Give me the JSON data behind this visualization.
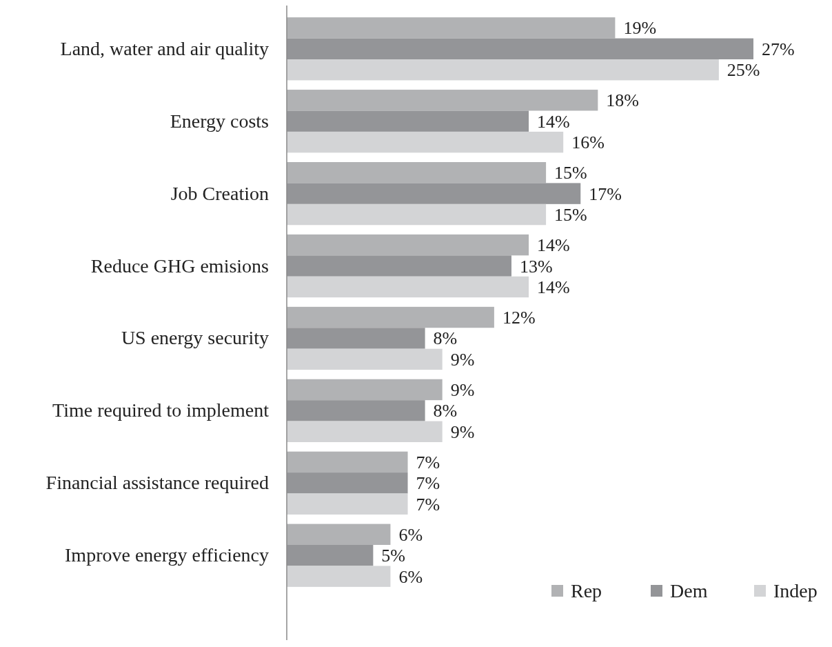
{
  "chart_data": {
    "type": "bar",
    "orientation": "horizontal",
    "categories": [
      "Land, water and air quality",
      "Energy costs",
      "Job Creation",
      "Reduce GHG emisions",
      "US energy security",
      "Time required to implement",
      "Financial assistance required",
      "Improve energy efficiency"
    ],
    "series": [
      {
        "name": "Rep",
        "color": "#b1b2b4",
        "values": [
          19,
          18,
          15,
          14,
          12,
          9,
          7,
          6
        ],
        "value_labels": [
          "19%",
          "18%",
          "15%",
          "14%",
          "12%",
          "9%",
          "7%",
          "6%"
        ]
      },
      {
        "name": "Dem",
        "color": "#949598",
        "values": [
          27,
          14,
          17,
          13,
          8,
          8,
          7,
          5
        ],
        "value_labels": [
          "27%",
          "14%",
          "17%",
          "13%",
          "8%",
          "8%",
          "7%",
          "5%"
        ]
      },
      {
        "name": "Indep",
        "color": "#d3d4d6",
        "values": [
          25,
          16,
          15,
          14,
          9,
          9,
          7,
          6
        ],
        "value_labels": [
          "25%",
          "16%",
          "15%",
          "14%",
          "9%",
          "9%",
          "7%",
          "6%"
        ]
      }
    ],
    "tick_labels": "y",
    "legend": "bottom right"
  }
}
